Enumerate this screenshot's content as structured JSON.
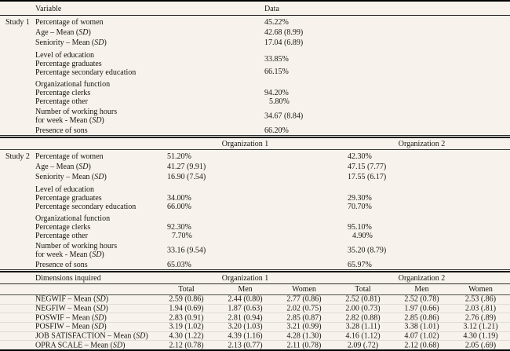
{
  "colors": {
    "background": "#f7f3ec",
    "text": "#181512",
    "rule": "#141414"
  },
  "top_header": {
    "variable": "Variable",
    "data": "Data"
  },
  "study1": {
    "label": "Study 1",
    "groups": [
      {
        "type": "rows",
        "spacing": "loose",
        "rows": [
          {
            "label": "Percentage of women",
            "value": "45.22%"
          },
          {
            "label": "Age – Mean (SD)",
            "value": "42.68 (8.99)"
          },
          {
            "label": "Seniority – Mean (SD)",
            "value": "17.04 (6.89)"
          }
        ]
      },
      {
        "type": "offset",
        "labels": [
          "Level of education",
          "Percentage graduates",
          "Percentage secondary education"
        ],
        "values": [
          "33.85%",
          "66.15%"
        ]
      },
      {
        "type": "rows",
        "spacing": "tight",
        "rows": [
          {
            "label": "Organizational function",
            "value": ""
          },
          {
            "label": "Percentage clerks",
            "value": "94.20%"
          },
          {
            "label": "Percentage other",
            "value": "5.80%",
            "indent": true
          }
        ]
      },
      {
        "type": "multiline",
        "labels": [
          "Number of working hours",
          "for week - Mean (SD)"
        ],
        "value": "34.67 (8.84)"
      },
      {
        "type": "rows",
        "spacing": "tight",
        "rows": [
          {
            "label": "Presence of sons",
            "value": "66.20%"
          }
        ]
      }
    ]
  },
  "study2": {
    "label": "Study 2",
    "org_headers": [
      "Organization 1",
      "Organization 2"
    ],
    "groups": [
      {
        "type": "rows",
        "spacing": "loose",
        "rows": [
          {
            "label": "Percentage of women",
            "values": [
              "51.20%",
              "42.30%"
            ]
          },
          {
            "label": "Age – Mean (SD)",
            "values": [
              "41.27 (9.91)",
              "47.15 (7.77)"
            ]
          },
          {
            "label": "Seniority – Mean (SD)",
            "values": [
              "16.90 (7.54)",
              "17.55 (6.17)"
            ]
          }
        ]
      },
      {
        "type": "rows",
        "spacing": "tight",
        "rows": [
          {
            "label": "Level of education",
            "values": [
              "",
              ""
            ]
          },
          {
            "label": "Percentage graduates",
            "values": [
              "34.00%",
              "29.30%"
            ]
          },
          {
            "label": "Percentage secondary education",
            "values": [
              "66.00%",
              "70.70%"
            ]
          }
        ]
      },
      {
        "type": "rows",
        "spacing": "tight",
        "rows": [
          {
            "label": "Organizational function",
            "values": [
              "",
              ""
            ]
          },
          {
            "label": "Percentage clerks",
            "values": [
              "92.30%",
              "95.10%"
            ]
          },
          {
            "label": "Percentage other",
            "values": [
              "7.70%",
              "4.90%"
            ],
            "indent": true
          }
        ]
      },
      {
        "type": "multiline",
        "labels": [
          "Number of working hours",
          "for week - Mean (SD)"
        ],
        "values": [
          "33.16 (9.54)",
          "35.20 (8.79)"
        ]
      },
      {
        "type": "rows",
        "spacing": "tight",
        "rows": [
          {
            "label": "Presence of sons",
            "values": [
              "65.03%",
              "65.97%"
            ]
          }
        ]
      }
    ]
  },
  "bottom": {
    "dimensions_label": "Dimensions inquired",
    "org_headers": [
      "Organization 1",
      "Organization 2"
    ],
    "subheaders": [
      "Total",
      "Men",
      "Women",
      "Total",
      "Men",
      "Women"
    ],
    "rows": [
      {
        "label": "NEGWIF – Mean (SD)",
        "values": [
          "2.59 (0.86)",
          "2.44 (0.80)",
          "2.77 (0.86)",
          "2.52 (0.81)",
          "2.52 (0.78)",
          "2.53 (.86)"
        ]
      },
      {
        "label": "NEGFIW – Mean (SD)",
        "values": [
          "1.94 (0.69)",
          "1.87 (0.63)",
          "2.02 (0.75)",
          "2.00 (0.73)",
          "1.97 (0.66)",
          "2.03 (.81)"
        ]
      },
      {
        "label": "POSWIF – Mean (SD)",
        "values": [
          "2.83 (0.91)",
          "2.81 (0.94)",
          "2.85 (0.87)",
          "2.82 (0.88)",
          "2.85 (0.86)",
          "2.76 (.89)"
        ]
      },
      {
        "label": "POSFIW – Mean (SD)",
        "values": [
          "3.19 (1.02)",
          "3.20 (1.03)",
          "3.21 (0.99)",
          "3.28 (1.11)",
          "3.38 (1.01)",
          "3.12 (1.21)"
        ]
      },
      {
        "label": "JOB SATISFACTION – Mean (SD)",
        "values": [
          "4.30 (1.22)",
          "4.39 (1.16)",
          "4.28 (1.30)",
          "4.16 (1.12)",
          "4.07 (1.02)",
          "4.30 (1.19)"
        ]
      },
      {
        "label": "OPRA SCALE – Mean (SD)",
        "values": [
          "2.12 (0.78)",
          "2.13 (0.77)",
          "2.11 (0.78)",
          "2.09 (.72)",
          "2.12 (0.68)",
          "2.05 (.69)"
        ]
      }
    ]
  }
}
